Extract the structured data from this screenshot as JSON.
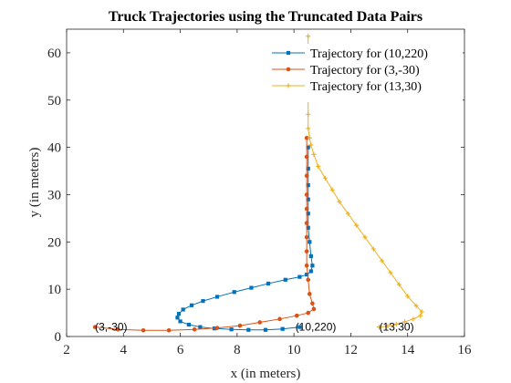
{
  "chart_data": {
    "type": "line",
    "title": "Truck Trajectories using the Truncated Data Pairs",
    "xlabel": "x (in meters)",
    "ylabel": "y (in meters)",
    "xlim": [
      2,
      16
    ],
    "ylim": [
      0,
      65
    ],
    "xticks": [
      2,
      4,
      6,
      8,
      10,
      12,
      14,
      16
    ],
    "yticks": [
      0,
      10,
      20,
      30,
      40,
      50,
      60
    ],
    "legend_position": "top-right",
    "series": [
      {
        "name": "Trajectory for (10,220)",
        "color": "#0072BD",
        "marker": "square",
        "x": [
          10.2,
          9.6,
          9.0,
          8.4,
          7.8,
          7.2,
          6.7,
          6.3,
          6.0,
          5.9,
          5.95,
          6.1,
          6.4,
          6.8,
          7.3,
          7.9,
          8.5,
          9.1,
          9.7,
          10.2,
          10.45,
          10.6,
          10.65,
          10.6,
          10.55,
          10.5,
          10.5,
          10.5,
          10.5,
          10.5,
          10.5
        ],
        "y": [
          2.0,
          1.6,
          1.4,
          1.4,
          1.5,
          1.7,
          2.0,
          2.5,
          3.2,
          4.0,
          4.8,
          5.7,
          6.6,
          7.5,
          8.4,
          9.4,
          10.3,
          11.2,
          12.0,
          12.6,
          13.1,
          13.8,
          15.0,
          17.0,
          20.0,
          23.0,
          26.0,
          29.0,
          32.0,
          35.5,
          40.0
        ]
      },
      {
        "name": "Trajectory for (3,-30)",
        "color": "#D95319",
        "marker": "circle",
        "x": [
          3.0,
          3.8,
          4.7,
          5.6,
          6.5,
          7.3,
          8.1,
          8.8,
          9.5,
          10.1,
          10.5,
          10.7,
          10.65,
          10.55,
          10.5,
          10.45,
          10.45,
          10.45,
          10.45,
          10.45,
          10.45,
          10.45,
          10.45,
          10.45
        ],
        "y": [
          2.0,
          1.5,
          1.3,
          1.3,
          1.5,
          1.8,
          2.3,
          3.0,
          3.7,
          4.4,
          5.0,
          5.8,
          7.0,
          9.0,
          12.0,
          15.0,
          18.0,
          21.0,
          24.0,
          27.0,
          30.0,
          34.0,
          38.0,
          42.0
        ]
      },
      {
        "name": "Trajectory for (13,30)",
        "color": "#EDB120",
        "marker": "plus",
        "x": [
          13.0,
          13.3,
          13.6,
          13.9,
          14.2,
          14.45,
          14.5,
          14.3,
          14.0,
          13.7,
          13.4,
          13.1,
          12.8,
          12.5,
          12.2,
          11.9,
          11.6,
          11.35,
          11.1,
          10.85,
          10.7,
          10.6,
          10.55,
          10.5,
          10.5,
          10.5,
          10.5,
          10.5,
          10.5,
          10.5
        ],
        "y": [
          2.0,
          2.2,
          2.6,
          3.1,
          3.7,
          4.4,
          5.2,
          6.5,
          8.5,
          11.0,
          13.5,
          16.0,
          18.5,
          21.0,
          23.5,
          26.0,
          28.5,
          31.0,
          33.5,
          36.0,
          38.5,
          40.5,
          42.0,
          44.0,
          47.0,
          50.0,
          53.0,
          56.0,
          59.5,
          63.5
        ]
      }
    ],
    "annotations": [
      {
        "text": "(3,-30)",
        "x": 3.0,
        "y": 2.0
      },
      {
        "text": "(10,220)",
        "x": 10.05,
        "y": 2.0
      },
      {
        "text": "(13,30)",
        "x": 13.0,
        "y": 2.0
      }
    ]
  }
}
